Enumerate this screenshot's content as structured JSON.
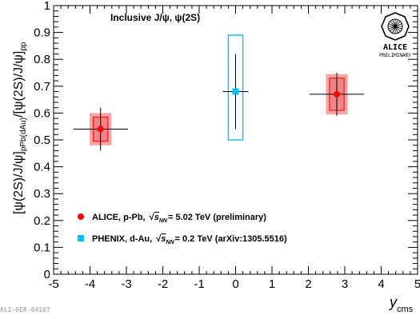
{
  "chart_data": {
    "type": "scatter",
    "title": "Inclusive J/ψ, ψ(2S)",
    "xlabel": "y_cms",
    "ylabel": "[ψ(2S)/J/ψ]_pPb(dAu) / [ψ(2S)/J/ψ]_pp",
    "xlim": [
      -5,
      5
    ],
    "ylim": [
      0,
      1
    ],
    "x_ticks": [
      "-5",
      "-4",
      "-3",
      "-2",
      "-1",
      "0",
      "1",
      "2",
      "3",
      "4",
      "5"
    ],
    "y_ticks": [
      "0",
      "0.1",
      "0.2",
      "0.3",
      "0.4",
      "0.5",
      "0.6",
      "0.7",
      "0.8",
      "0.9",
      "1"
    ],
    "grid": false,
    "legend_position": "bottom-left",
    "series": [
      {
        "name": "ALICE, p-Pb, √s_NN = 5.02 TeV (preliminary)",
        "color": "#ff0000",
        "marker": "circle",
        "points": [
          {
            "x": -3.71,
            "y": 0.54,
            "xerr": 0.75,
            "yerr_stat": 0.08,
            "syst_low": 0.495,
            "syst_high": 0.585,
            "syst_xhalf": 0.2,
            "corr_low": 0.48,
            "corr_high": 0.6,
            "corr_xhalf": 0.3
          },
          {
            "x": 2.78,
            "y": 0.67,
            "xerr": 0.75,
            "yerr_stat": 0.08,
            "syst_low": 0.61,
            "syst_high": 0.73,
            "syst_xhalf": 0.2,
            "corr_low": 0.595,
            "corr_high": 0.745,
            "corr_xhalf": 0.3
          }
        ]
      },
      {
        "name": "PHENIX, d-Au, √s_NN = 0.2 TeV (arXiv:1305.5516)",
        "color": "#00bfff",
        "marker": "square",
        "points": [
          {
            "x": 0.0,
            "y": 0.68,
            "xerr": 0.35,
            "yerr_stat": 0.14,
            "syst_low": 0.5,
            "syst_high": 0.89,
            "syst_xhalf": 0.2
          }
        ]
      }
    ]
  },
  "legend": {
    "alice": {
      "prefix": "ALICE, p-Pb, ",
      "energy": "= 5.02 TeV  (preliminary)"
    },
    "phenix": {
      "prefix": "PHENIX, d-Au, ",
      "energy": "= 0.2 TeV (arXiv:1305.5516)"
    }
  },
  "logo": {
    "word": "ALICE",
    "sub": "PRELIMINARY"
  },
  "figure_id": "ALI-DER-64107"
}
